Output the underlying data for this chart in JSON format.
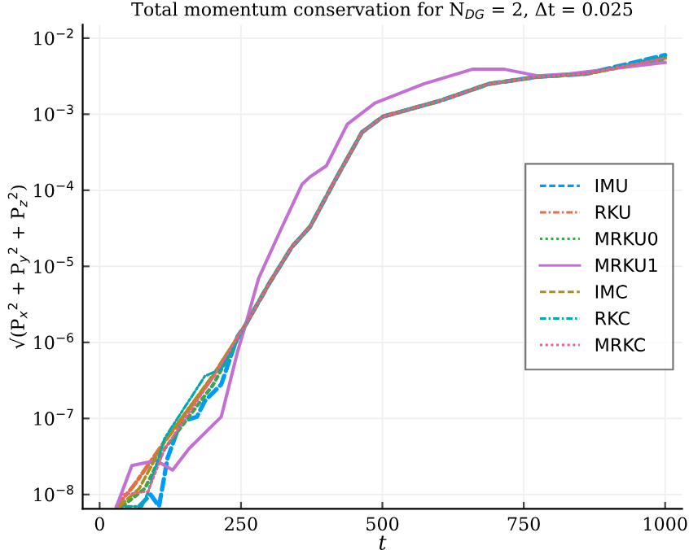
{
  "chart_data": {
    "type": "line",
    "title": "Total momentum conservation for N$_{DG}$ = 2, Δt = 0.025",
    "xlabel": "t",
    "ylabel": "√(P$_{x}$$^{2}$ + P$_{y}$$^{2}$ + P$_{z}$$^{2}$)",
    "log": "y",
    "xlim": [
      -30,
      1030
    ],
    "xticks": [
      0,
      250,
      500,
      750,
      1000
    ],
    "ylim": [
      6.5e-09,
      0.015
    ],
    "yticks": [
      {
        "value": 1e-08,
        "label": "10$^{−8}$"
      },
      {
        "value": 1e-07,
        "label": "10$^{−7}$"
      },
      {
        "value": 1e-06,
        "label": "10$^{−6}$"
      },
      {
        "value": 1e-05,
        "label": "10$^{−5}$"
      },
      {
        "value": 0.0001,
        "label": "10$^{−4}$"
      },
      {
        "value": 0.001,
        "label": "10$^{−3}$"
      },
      {
        "value": 0.01,
        "label": "10$^{−2}$"
      }
    ],
    "grid": true,
    "legend": "right",
    "marker": "none",
    "series": [
      {
        "name": "IMU",
        "color": "#009af9",
        "line_style": "dashed",
        "x": [
          70,
          90,
          105,
          120,
          143,
          172,
          186,
          215,
          244,
          258,
          300,
          340,
          372,
          415,
          464,
          501,
          602,
          688,
          774,
          860,
          1000
        ],
        "values": [
          7e-09,
          1e-08,
          7e-09,
          3e-08,
          9e-08,
          1.05e-07,
          1.7e-07,
          2.8e-07,
          1.2e-06,
          1.7e-06,
          6e-06,
          1.8e-05,
          3.3e-05,
          0.00013,
          0.00058,
          0.00093,
          0.0015,
          0.0025,
          0.0031,
          0.0034,
          0.006
        ]
      },
      {
        "name": "RKU",
        "color": "#e26f46",
        "line_style": "dashdot",
        "x": [
          30,
          60,
          115,
          201,
          258,
          300,
          340,
          372,
          415,
          464,
          501,
          602,
          688,
          774,
          860,
          1000
        ],
        "values": [
          7e-09,
          1.3e-08,
          5e-08,
          3.6e-07,
          1.7e-06,
          6e-06,
          1.8e-05,
          3.3e-05,
          0.00013,
          0.00058,
          0.00093,
          0.0015,
          0.0025,
          0.0031,
          0.0034,
          0.0055
        ]
      },
      {
        "name": "MRKU0",
        "color": "#3ea44e",
        "line_style": "dotted",
        "x": [
          40,
          80,
          115,
          201,
          258,
          300,
          340,
          372,
          415,
          464,
          501,
          602,
          688,
          774,
          860,
          1000
        ],
        "values": [
          7e-09,
          1.2e-08,
          4e-08,
          2.8e-07,
          1.7e-06,
          6e-06,
          1.8e-05,
          3.3e-05,
          0.00013,
          0.00058,
          0.00093,
          0.0015,
          0.0025,
          0.0031,
          0.0034,
          0.0053
        ]
      },
      {
        "name": "MRKU1",
        "color": "#c271d2",
        "line_style": "solid",
        "x": [
          30,
          57,
          100,
          129,
          158,
          201,
          215,
          244,
          258,
          281,
          320,
          358,
          372,
          401,
          438,
          487,
          573,
          659,
          716,
          774,
          831,
          1000
        ],
        "values": [
          7e-09,
          2.4e-08,
          2.8e-08,
          2.1e-08,
          4e-08,
          8.3e-08,
          1.05e-07,
          7.6e-07,
          1.7e-06,
          6.9e-06,
          3e-05,
          0.00012,
          0.00015,
          0.00021,
          0.00074,
          0.0014,
          0.0025,
          0.0039,
          0.0039,
          0.0032,
          0.0034,
          0.0048
        ]
      },
      {
        "name": "IMC",
        "color": "#ac8e18",
        "line_style": "dashed",
        "x": [
          35,
          70,
          115,
          201,
          258,
          300,
          340,
          372,
          415,
          464,
          501,
          602,
          688,
          774,
          860,
          1000
        ],
        "values": [
          7e-09,
          1.2e-08,
          5e-08,
          3.8e-07,
          1.7e-06,
          6e-06,
          1.8e-05,
          3.3e-05,
          0.00013,
          0.00058,
          0.00093,
          0.0015,
          0.0025,
          0.0031,
          0.0034,
          0.0055
        ]
      },
      {
        "name": "RKC",
        "color": "#00a9ad",
        "line_style": "dashdot",
        "x": [
          45,
          75,
          86,
          115,
          186,
          215,
          258,
          300,
          340,
          372,
          415,
          464,
          501,
          602,
          688,
          774,
          860,
          1000
        ],
        "values": [
          7e-09,
          7e-09,
          1.1e-08,
          5.5e-08,
          3.6e-07,
          4.5e-07,
          1.7e-06,
          6e-06,
          1.8e-05,
          3.3e-05,
          0.00013,
          0.00058,
          0.00093,
          0.0015,
          0.0025,
          0.0031,
          0.0034,
          0.0058
        ]
      },
      {
        "name": "MRKC",
        "color": "#ed5e93",
        "line_style": "dotted",
        "x": [
          40,
          86,
          115,
          201,
          258,
          300,
          340,
          372,
          415,
          464,
          501,
          602,
          688,
          774,
          860,
          1000
        ],
        "values": [
          1e-08,
          1.1e-08,
          4e-08,
          3.5e-07,
          1.7e-06,
          6e-06,
          1.8e-05,
          3.3e-05,
          0.00013,
          0.00058,
          0.00093,
          0.0015,
          0.0025,
          0.0031,
          0.0034,
          0.0055
        ]
      }
    ]
  }
}
